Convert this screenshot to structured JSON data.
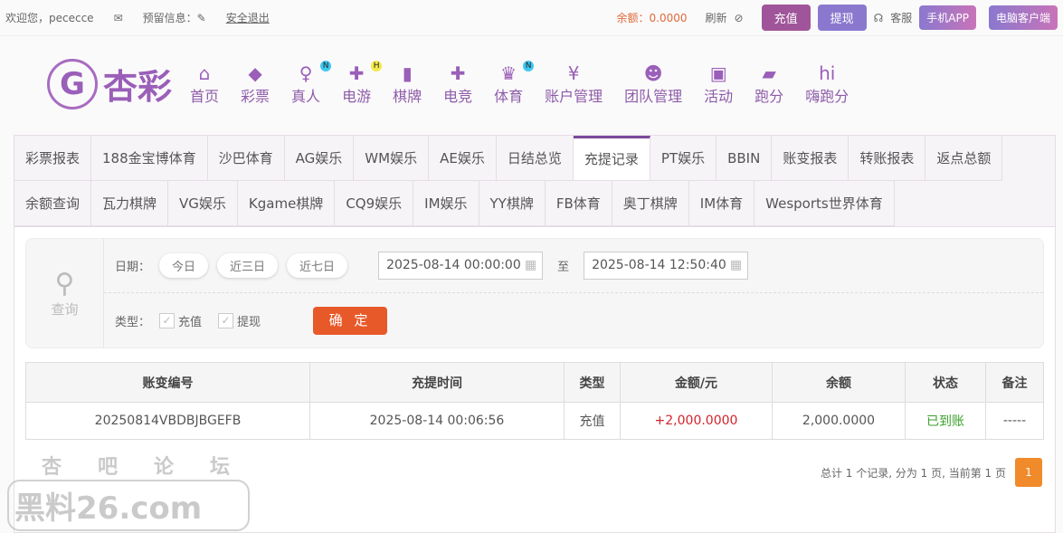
{
  "topbar": {
    "welcome": "欢迎您，pececce",
    "reserved": "预留信息：",
    "logout": "安全退出",
    "balance": "余额：0.0000",
    "refresh": "刷新",
    "deposit": "充值",
    "withdraw": "提现",
    "service": "客服",
    "app": "手机APP",
    "pc": "电脑客户端"
  },
  "logo": {
    "text": "杏彩"
  },
  "nav": [
    {
      "label": "首页",
      "icon": "home-icon"
    },
    {
      "label": "彩票",
      "icon": "ticket-icon"
    },
    {
      "label": "真人",
      "icon": "woman-icon",
      "badge": "N"
    },
    {
      "label": "电游",
      "icon": "gamepad-icon",
      "badge": "H"
    },
    {
      "label": "棋牌",
      "icon": "cards-icon"
    },
    {
      "label": "电竞",
      "icon": "gamepad-icon"
    },
    {
      "label": "体育",
      "icon": "trophy-icon",
      "badge": "N"
    },
    {
      "label": "账户管理",
      "icon": "yen-icon"
    },
    {
      "label": "团队管理",
      "icon": "team-icon"
    },
    {
      "label": "活动",
      "icon": "gift-icon"
    },
    {
      "label": "跑分",
      "icon": "rhino-icon"
    },
    {
      "label": "嗨跑分",
      "icon": "hi-icon"
    }
  ],
  "tabs": [
    "彩票报表",
    "188金宝博体育",
    "沙巴体育",
    "AG娱乐",
    "WM娱乐",
    "AE娱乐",
    "日结总览",
    "充提记录",
    "PT娱乐",
    "BBIN",
    "账变报表",
    "转账报表",
    "返点总额",
    "余额查询",
    "瓦力棋牌",
    "VG娱乐",
    "Kgame棋牌",
    "CQ9娱乐",
    "IM娱乐",
    "YY棋牌",
    "FB体育",
    "奥丁棋牌",
    "IM体育",
    "Wesports世界体育"
  ],
  "active_tab": "充提记录",
  "filter": {
    "query": "查询",
    "date_label": "日期：",
    "today": "今日",
    "three": "近三日",
    "seven": "近七日",
    "start": "2025-08-14 00:00:00",
    "to": "至",
    "end": "2025-08-14 12:50:40",
    "type_label": "类型：",
    "deposit": "充值",
    "withdraw": "提现",
    "confirm": "确 定"
  },
  "table": {
    "headers": [
      "账变编号",
      "充提时间",
      "类型",
      "金额/元",
      "余额",
      "状态",
      "备注"
    ],
    "rows": [
      [
        "20250814VBDBJBGEFB",
        "2025-08-14 00:06:56",
        "充值",
        "+2,000.0000",
        "2,000.0000",
        "已到账",
        "-----"
      ]
    ]
  },
  "pager": {
    "summary": "总计 1 个记录, 分为 1 页, 当前第 1 页",
    "page": "1"
  },
  "watermark": {
    "line1": "杏吧论坛",
    "line2": "黑料26.com"
  }
}
